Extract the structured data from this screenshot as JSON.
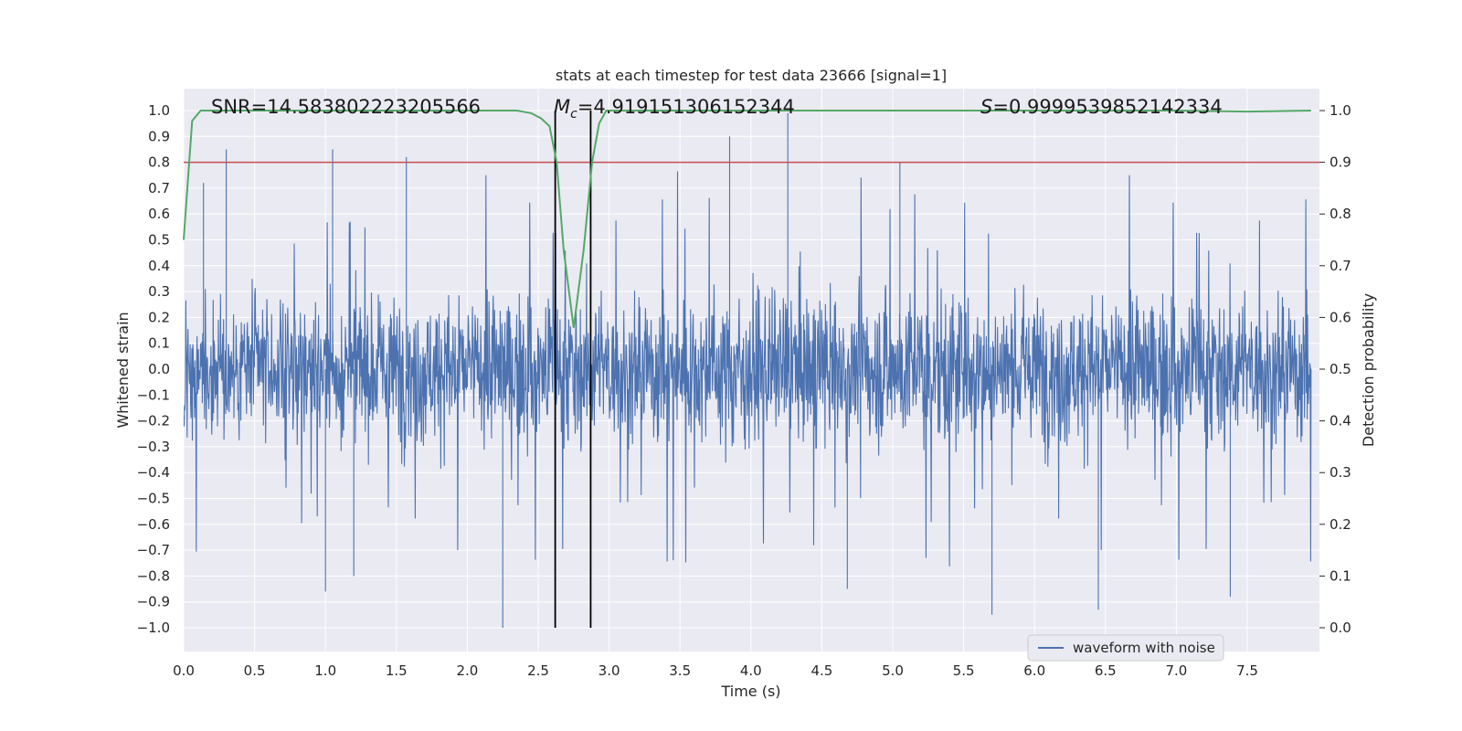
{
  "chart_data": {
    "type": "line",
    "title": "stats at each timestep for test data 23666 [signal=1]",
    "xlabel": "Time (s)",
    "ylabel": "Whitened strain",
    "y2label": "Detection probability",
    "xlim": [
      0.0,
      8.0
    ],
    "ylim": [
      -1.1,
      1.1
    ],
    "y2lim": [
      -0.05,
      1.05
    ],
    "grid": true,
    "x_ticks": [
      "0.0",
      "0.5",
      "1.0",
      "1.5",
      "2.0",
      "2.5",
      "3.0",
      "3.5",
      "4.0",
      "4.5",
      "5.0",
      "5.5",
      "6.0",
      "6.5",
      "7.0",
      "7.5"
    ],
    "y_ticks": [
      "1.0",
      "0.9",
      "0.8",
      "0.7",
      "0.6",
      "0.5",
      "0.4",
      "0.3",
      "0.2",
      "0.1",
      "0.0",
      "−0.1",
      "−0.2",
      "−0.3",
      "−0.4",
      "−0.5",
      "−0.6",
      "−0.7",
      "−0.8",
      "−0.9",
      "−1.0"
    ],
    "y2_ticks": [
      "1.0",
      "0.9",
      "0.8",
      "0.7",
      "0.6",
      "0.5",
      "0.4",
      "0.3",
      "0.2",
      "0.1",
      "0.0"
    ],
    "annotations": {
      "snr": "SNR=14.583802223205566",
      "mc": "=4.919151306152344",
      "mc_symbol": "M",
      "mc_sub": "c",
      "s": "=0.9999539852142334",
      "s_symbol": "S"
    },
    "legend": {
      "label": "waveform with noise",
      "placement": "lower-right"
    },
    "series": [
      {
        "name": "waveform with noise",
        "color": "#4c72b0",
        "axis": "left",
        "style": "dense noise waveform",
        "approx_envelope": {
          "typical_amplitude": 0.38,
          "max": 0.99,
          "min": -1.0
        }
      },
      {
        "name": "detection probability",
        "color": "#55a868",
        "axis": "right",
        "x": [
          0.0,
          0.06,
          0.12,
          0.2,
          1.0,
          2.0,
          2.35,
          2.45,
          2.52,
          2.58,
          2.63,
          2.68,
          2.75,
          2.82,
          2.88,
          2.93,
          2.98,
          3.5,
          5.0,
          7.0,
          7.5,
          7.95
        ],
        "values": [
          0.75,
          0.98,
          1.0,
          1.0,
          1.0,
          1.0,
          1.0,
          0.995,
          0.985,
          0.97,
          0.9,
          0.73,
          0.58,
          0.73,
          0.9,
          0.975,
          1.0,
          1.0,
          1.0,
          1.0,
          0.998,
          1.0
        ]
      }
    ],
    "threshold": {
      "value": 0.9,
      "axis": "right",
      "color": "#c44e52"
    },
    "vlines": [
      2.62,
      2.87
    ],
    "colors": {
      "background": "#eaeaf2",
      "grid": "#ffffff"
    }
  }
}
